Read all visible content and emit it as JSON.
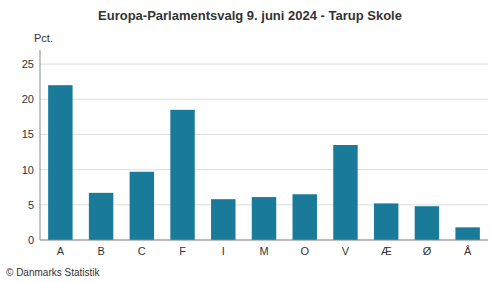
{
  "chart_data": {
    "type": "bar",
    "title": "Europa-Parlamentsvalg 9. juni 2024 - Tarup Skole",
    "ylabel": "Pct.",
    "footer": "© Danmarks Statistik",
    "categories": [
      "A",
      "B",
      "C",
      "F",
      "I",
      "M",
      "O",
      "V",
      "Æ",
      "Ø",
      "Å"
    ],
    "values": [
      22.0,
      6.7,
      9.7,
      18.5,
      5.8,
      6.1,
      6.5,
      13.5,
      5.2,
      4.8,
      1.8
    ],
    "color": "#1a7a9a",
    "ylim": [
      0,
      27
    ],
    "yticks": [
      0,
      5,
      10,
      15,
      20,
      25
    ],
    "grid": true
  }
}
